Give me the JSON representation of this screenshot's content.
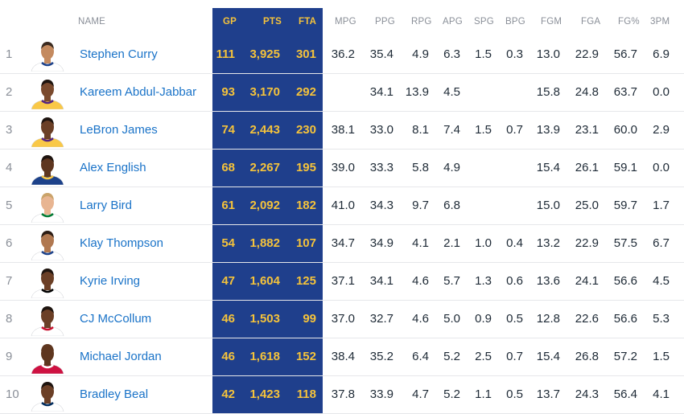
{
  "headers": {
    "name": "NAME",
    "gp": "GP",
    "pts": "PTS",
    "fta": "FTA",
    "mpg": "MPG",
    "ppg": "PPG",
    "rpg": "RPG",
    "apg": "APG",
    "spg": "SPG",
    "bpg": "BPG",
    "fgm": "FGM",
    "fga": "FGA",
    "fgp": "FG%",
    "tpm": "3PM"
  },
  "colors": {
    "highlight_bg": "#1f3f8c",
    "highlight_text": "#f5c33b",
    "link": "#1a73c8"
  },
  "rows": [
    {
      "rank": "1",
      "name": "Stephen Curry",
      "jersey": "#ffffff",
      "trim": "#1d428a",
      "skin": "#c48a5f",
      "hair": "#3a2a20",
      "gp": "111",
      "pts": "3,925",
      "fta": "301",
      "mpg": "36.2",
      "ppg": "35.4",
      "rpg": "4.9",
      "apg": "6.3",
      "spg": "1.5",
      "bpg": "0.3",
      "fgm": "13.0",
      "fga": "22.9",
      "fgp": "56.7",
      "tpm": "6.9"
    },
    {
      "rank": "2",
      "name": "Kareem Abdul-Jabbar",
      "jersey": "#f9c847",
      "trim": "#552583",
      "skin": "#7a4a2e",
      "hair": "#1e140f",
      "gp": "93",
      "pts": "3,170",
      "fta": "292",
      "mpg": "",
      "ppg": "34.1",
      "rpg": "13.9",
      "apg": "4.5",
      "spg": "",
      "bpg": "",
      "fgm": "15.8",
      "fga": "24.8",
      "fgp": "63.7",
      "tpm": "0.0"
    },
    {
      "rank": "3",
      "name": "LeBron James",
      "jersey": "#f9c847",
      "trim": "#552583",
      "skin": "#6b3f26",
      "hair": "#1e140f",
      "gp": "74",
      "pts": "2,443",
      "fta": "230",
      "mpg": "38.1",
      "ppg": "33.0",
      "rpg": "8.1",
      "apg": "7.4",
      "spg": "1.5",
      "bpg": "0.7",
      "fgm": "13.9",
      "fga": "23.1",
      "fgp": "60.0",
      "tpm": "2.9"
    },
    {
      "rank": "4",
      "name": "Alex English",
      "jersey": "#1d428a",
      "trim": "#f9c847",
      "skin": "#5e361f",
      "hair": "#1e140f",
      "gp": "68",
      "pts": "2,267",
      "fta": "195",
      "mpg": "39.0",
      "ppg": "33.3",
      "rpg": "5.8",
      "apg": "4.9",
      "spg": "",
      "bpg": "",
      "fgm": "15.4",
      "fga": "26.1",
      "fgp": "59.1",
      "tpm": "0.0"
    },
    {
      "rank": "5",
      "name": "Larry Bird",
      "jersey": "#ffffff",
      "trim": "#007a33",
      "skin": "#e8b592",
      "hair": "#caa36a",
      "gp": "61",
      "pts": "2,092",
      "fta": "182",
      "mpg": "41.0",
      "ppg": "34.3",
      "rpg": "9.7",
      "apg": "6.8",
      "spg": "",
      "bpg": "",
      "fgm": "15.0",
      "fga": "25.0",
      "fgp": "59.7",
      "tpm": "1.7"
    },
    {
      "rank": "6",
      "name": "Klay Thompson",
      "jersey": "#ffffff",
      "trim": "#1d428a",
      "skin": "#b07850",
      "hair": "#2b1c14",
      "gp": "54",
      "pts": "1,882",
      "fta": "107",
      "mpg": "34.7",
      "ppg": "34.9",
      "rpg": "4.1",
      "apg": "2.1",
      "spg": "1.0",
      "bpg": "0.4",
      "fgm": "13.2",
      "fga": "22.9",
      "fgp": "57.5",
      "tpm": "6.7"
    },
    {
      "rank": "7",
      "name": "Kyrie Irving",
      "jersey": "#ffffff",
      "trim": "#000000",
      "skin": "#6b3f26",
      "hair": "#1e140f",
      "gp": "47",
      "pts": "1,604",
      "fta": "125",
      "mpg": "37.1",
      "ppg": "34.1",
      "rpg": "4.6",
      "apg": "5.7",
      "spg": "1.3",
      "bpg": "0.6",
      "fgm": "13.6",
      "fga": "24.1",
      "fgp": "56.6",
      "tpm": "4.5"
    },
    {
      "rank": "8",
      "name": "CJ McCollum",
      "jersey": "#ffffff",
      "trim": "#c8102e",
      "skin": "#6b3f26",
      "hair": "#1e140f",
      "gp": "46",
      "pts": "1,503",
      "fta": "99",
      "mpg": "37.0",
      "ppg": "32.7",
      "rpg": "4.6",
      "apg": "5.0",
      "spg": "0.9",
      "bpg": "0.5",
      "fgm": "12.8",
      "fga": "22.6",
      "fgp": "56.6",
      "tpm": "5.3"
    },
    {
      "rank": "9",
      "name": "Michael Jordan",
      "jersey": "#ce1141",
      "trim": "#ffffff",
      "skin": "#5e361f",
      "hair": "#5e361f",
      "gp": "46",
      "pts": "1,618",
      "fta": "152",
      "mpg": "38.4",
      "ppg": "35.2",
      "rpg": "6.4",
      "apg": "5.2",
      "spg": "2.5",
      "bpg": "0.7",
      "fgm": "15.4",
      "fga": "26.8",
      "fgp": "57.2",
      "tpm": "1.5"
    },
    {
      "rank": "10",
      "name": "Bradley Beal",
      "jersey": "#ffffff",
      "trim": "#002b5c",
      "skin": "#6b3f26",
      "hair": "#1e140f",
      "gp": "42",
      "pts": "1,423",
      "fta": "118",
      "mpg": "37.8",
      "ppg": "33.9",
      "rpg": "4.7",
      "apg": "5.2",
      "spg": "1.1",
      "bpg": "0.5",
      "fgm": "13.7",
      "fga": "24.3",
      "fgp": "56.4",
      "tpm": "4.1"
    }
  ]
}
